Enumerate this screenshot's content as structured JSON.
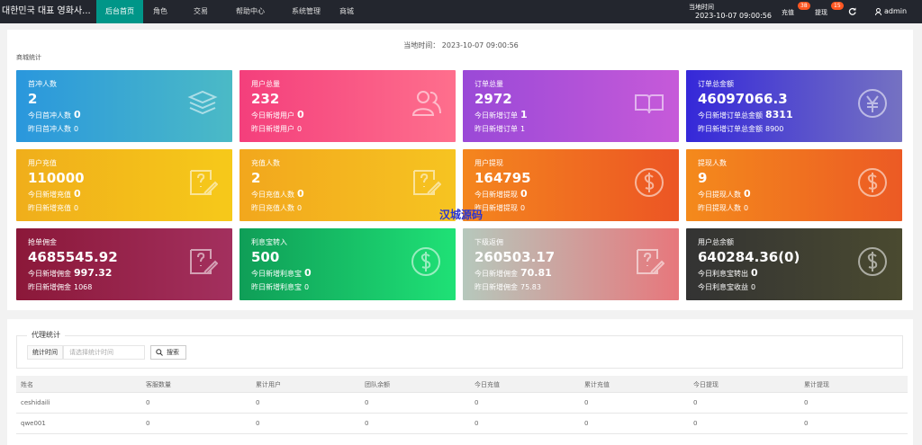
{
  "nav": {
    "brand": "대한민국 대표 영화사...",
    "menu": [
      "后台首页",
      "角色",
      "交易",
      "帮助中心",
      "系统管理",
      "商城"
    ],
    "time_label": "当地时间",
    "time": "2023-10-07 09:00:56",
    "recharge": "充值",
    "recharge_badge": 38,
    "withdraw": "提现",
    "withdraw_badge": 15,
    "user": "admin"
  },
  "stats": {
    "time_label": "当地时间：",
    "time": "2023-10-07 09:00:56",
    "section": "商城统计",
    "cards": [
      {
        "title": "首冲人数",
        "value": 2,
        "today_label": "今日首冲人数",
        "today_value": 0,
        "yesterday_label": "昨日首冲人数",
        "yesterday_value": 0
      },
      {
        "title": "用户总量",
        "value": 232,
        "today_label": "今日新增用户",
        "today_value": 0,
        "yesterday_label": "昨日新增用户",
        "yesterday_value": 0
      },
      {
        "title": "订单总量",
        "value": 2972,
        "today_label": "今日新增订单",
        "today_value": 1,
        "yesterday_label": "昨日新增订单",
        "yesterday_value": 1
      },
      {
        "title": "订单总金额",
        "value": 46097066.3,
        "today_label": "今日新增订单总金额",
        "today_value": 8311,
        "yesterday_label": "昨日新增订单总金额",
        "yesterday_value": 8900
      },
      {
        "title": "用户充值",
        "value": 110000,
        "today_label": "今日新增充值",
        "today_value": 0,
        "yesterday_label": "昨日新增充值",
        "yesterday_value": 0
      },
      {
        "title": "充值人数",
        "value": 2,
        "today_label": "今日充值人数",
        "today_value": 0,
        "yesterday_label": "昨日充值人数",
        "yesterday_value": 0
      },
      {
        "title": "用户提现",
        "value": 164795,
        "today_label": "今日新增提现",
        "today_value": 0,
        "yesterday_label": "昨日新增提现",
        "yesterday_value": 0
      },
      {
        "title": "提现人数",
        "value": 9,
        "today_label": "今日提现人数",
        "today_value": 0,
        "yesterday_label": "昨日提现人数",
        "yesterday_value": 0
      },
      {
        "title": "抢单佣金",
        "value": 4685545.92,
        "today_label": "今日新增佣金",
        "today_value": 997.32,
        "yesterday_label": "昨日新增佣金",
        "yesterday_value": 1068
      },
      {
        "title": "利息宝转入",
        "value": 500,
        "today_label": "今日新增利息宝",
        "today_value": 0,
        "yesterday_label": "昨日新增利息宝",
        "yesterday_value": 0
      },
      {
        "title": "下级返佣",
        "value": 260503.17,
        "today_label": "今日新增佣金",
        "today_value": 70.81,
        "yesterday_label": "昨日新增佣金",
        "yesterday_value": 75.83
      },
      {
        "title": "用户总余额",
        "value": "640284.36(0)",
        "today_label": "今日利息宝转出",
        "today_value": 0,
        "yesterday_label": "今日利息宝收益",
        "yesterday_value": 0
      }
    ]
  },
  "watermark": "汉城源码",
  "agent": {
    "legend": "代理统计",
    "filter_label": "统计时间",
    "filter_placeholder": "请选择统计时间",
    "search": "搜索",
    "table": {
      "columns": [
        "姓名",
        "客服数量",
        "累计用户",
        "团队余额",
        "今日充值",
        "累计充值",
        "今日提现",
        "累计提现"
      ],
      "rows": [
        [
          "ceshidaili",
          0,
          0,
          0,
          0,
          0,
          0,
          0
        ],
        [
          "qwe001",
          0,
          0,
          0,
          0,
          0,
          0,
          0
        ]
      ]
    }
  }
}
